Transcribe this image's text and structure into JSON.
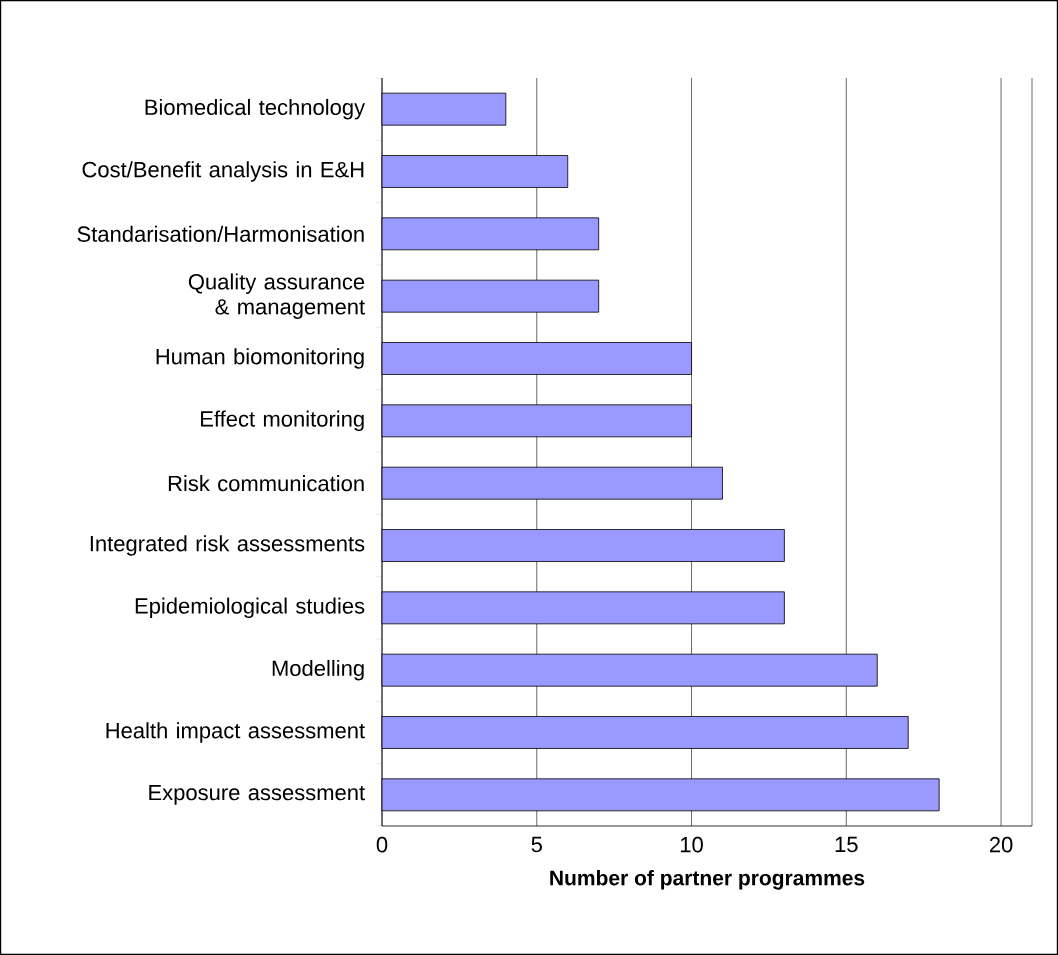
{
  "chart_data": {
    "type": "bar",
    "orientation": "horizontal",
    "xlabel": "Number of partner programmes",
    "categories": [
      "Biomedical technology",
      "Cost/Benefit analysis in E&H",
      "Standarisation/Harmonisation",
      "Quality assurance & management",
      "Human biomonitoring",
      "Effect monitoring",
      "Risk communication",
      "Integrated risk assessments",
      "Epidemiological studies",
      "Modelling",
      "Health impact assessment",
      "Exposure assessment"
    ],
    "values": [
      4,
      6,
      7,
      7,
      10,
      10,
      11,
      13,
      13,
      16,
      17,
      18
    ],
    "color": "#9999ff",
    "xlim": [
      0,
      21
    ],
    "xticks": [
      0,
      5,
      10,
      15,
      20
    ],
    "grid": "x"
  }
}
